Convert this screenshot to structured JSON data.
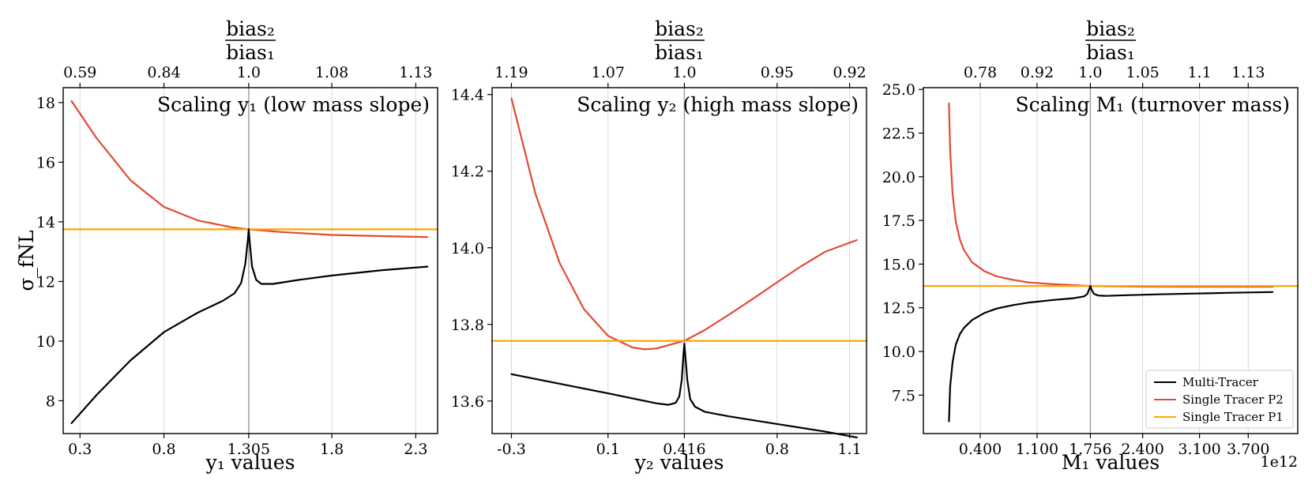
{
  "colors": {
    "multi": "#000000",
    "single_p2": "#e34a33",
    "single_p1": "#ffa500",
    "grid": "#d9d9d9",
    "ref_line": "#a0a0a0"
  },
  "chart_data": [
    {
      "type": "line",
      "title": "Scaling y₁ (low mass slope)",
      "xlabel": "y₁ values",
      "ylabel": "σ_fNL",
      "xlim": [
        0.2,
        2.43
      ],
      "ylim": [
        6.9,
        18.5
      ],
      "xticks": [
        0.3,
        0.8,
        1.305,
        1.8,
        2.3
      ],
      "xtick_labels": [
        "0.3",
        "0.8",
        "1.305",
        "1.8",
        "2.3"
      ],
      "yticks": [
        8,
        10,
        12,
        14,
        16,
        18
      ],
      "ytick_labels": [
        "8",
        "10",
        "12",
        "14",
        "16",
        "18"
      ],
      "top_axis_label_num": "bias₂",
      "top_axis_label_den": "bias₁",
      "top_ticks": [
        0.3,
        0.8,
        1.305,
        1.8,
        2.3
      ],
      "top_tick_labels": [
        "0.59",
        "0.84",
        "1.0",
        "1.08",
        "1.13"
      ],
      "ref_x": 1.305,
      "series": [
        {
          "name": "Single Tracer P2",
          "x": [
            0.25,
            0.4,
            0.6,
            0.8,
            1.0,
            1.2,
            1.305,
            1.5,
            1.8,
            2.1,
            2.37
          ],
          "y": [
            18.05,
            16.8,
            15.4,
            14.5,
            14.05,
            13.82,
            13.75,
            13.66,
            13.56,
            13.52,
            13.49
          ]
        },
        {
          "name": "Multi-Tracer",
          "x": [
            0.25,
            0.4,
            0.6,
            0.8,
            1.0,
            1.15,
            1.22,
            1.26,
            1.285,
            1.3,
            1.305,
            1.31,
            1.325,
            1.35,
            1.38,
            1.45,
            1.6,
            1.8,
            2.1,
            2.37
          ],
          "y": [
            7.25,
            8.2,
            9.35,
            10.3,
            10.95,
            11.35,
            11.6,
            11.95,
            12.6,
            13.4,
            13.75,
            13.4,
            12.5,
            12.05,
            11.92,
            11.92,
            12.05,
            12.2,
            12.38,
            12.5
          ]
        },
        {
          "name": "Single Tracer P1",
          "x": [
            0.2,
            2.43
          ],
          "y": [
            13.75,
            13.75
          ]
        }
      ]
    },
    {
      "type": "line",
      "title": "Scaling y₂ (high mass slope)",
      "xlabel": "y₂ values",
      "ylabel": "",
      "xlim": [
        -0.38,
        1.17
      ],
      "ylim": [
        13.515,
        14.418
      ],
      "xticks": [
        -0.3,
        0.1,
        0.416,
        0.8,
        1.1
      ],
      "xtick_labels": [
        "-0.3",
        "0.1",
        "0.416",
        "0.8",
        "1.1"
      ],
      "yticks": [
        13.6,
        13.8,
        14.0,
        14.2,
        14.4
      ],
      "ytick_labels": [
        "13.6",
        "13.8",
        "14.0",
        "14.2",
        "14.4"
      ],
      "top_axis_label_num": "bias₂",
      "top_axis_label_den": "bias₁",
      "top_ticks": [
        -0.3,
        0.1,
        0.416,
        0.8,
        1.1
      ],
      "top_tick_labels": [
        "1.19",
        "1.07",
        "1.0",
        "0.95",
        "0.92"
      ],
      "ref_x": 0.416,
      "series": [
        {
          "name": "Single Tracer P2",
          "x": [
            -0.3,
            -0.2,
            -0.1,
            0.0,
            0.1,
            0.2,
            0.25,
            0.3,
            0.416,
            0.5,
            0.6,
            0.7,
            0.8,
            0.9,
            1.0,
            1.13
          ],
          "y": [
            14.39,
            14.14,
            13.96,
            13.84,
            13.77,
            13.74,
            13.735,
            13.737,
            13.757,
            13.785,
            13.825,
            13.867,
            13.91,
            13.952,
            13.99,
            14.02
          ]
        },
        {
          "name": "Multi-Tracer",
          "x": [
            -0.3,
            -0.1,
            0.1,
            0.3,
            0.35,
            0.38,
            0.395,
            0.405,
            0.412,
            0.416,
            0.42,
            0.428,
            0.44,
            0.46,
            0.5,
            0.6,
            0.8,
            1.0,
            1.13
          ],
          "y": [
            13.67,
            13.645,
            13.62,
            13.594,
            13.59,
            13.595,
            13.612,
            13.655,
            13.72,
            13.75,
            13.72,
            13.655,
            13.605,
            13.585,
            13.572,
            13.56,
            13.54,
            13.52,
            13.505
          ]
        },
        {
          "name": "Single Tracer P1",
          "x": [
            -0.38,
            1.17
          ],
          "y": [
            13.757,
            13.757
          ]
        }
      ]
    },
    {
      "type": "line",
      "title": "Scaling M₁ (turnover mass)",
      "xlabel": "M₁ values",
      "ylabel": "",
      "x_offset_text": "1e12",
      "xlim": [
        -0.3,
        4.31
      ],
      "ylim": [
        5.3,
        25.1
      ],
      "xticks": [
        0.4,
        1.1,
        1.756,
        2.4,
        3.1,
        3.7
      ],
      "xtick_labels": [
        "0.400",
        "1.100",
        "1.756",
        "2.400",
        "3.100",
        "3.700"
      ],
      "yticks": [
        7.5,
        10.0,
        12.5,
        15.0,
        17.5,
        20.0,
        22.5,
        25.0
      ],
      "ytick_labels": [
        "7.5",
        "10.0",
        "12.5",
        "15.0",
        "17.5",
        "20.0",
        "22.5",
        "25.0"
      ],
      "top_axis_label_num": "bias₂",
      "top_axis_label_den": "bias₁",
      "top_ticks": [
        0.4,
        1.1,
        1.756,
        2.4,
        3.1,
        3.7
      ],
      "top_tick_labels": [
        "0.78",
        "0.92",
        "1.0",
        "1.05",
        "1.1",
        "1.13"
      ],
      "ref_x": 1.756,
      "series": [
        {
          "name": "Single Tracer P2",
          "x": [
            0.015,
            0.03,
            0.06,
            0.1,
            0.15,
            0.2,
            0.3,
            0.45,
            0.6,
            0.8,
            1.0,
            1.3,
            1.6,
            1.756,
            2.0,
            2.5,
            3.0,
            3.5,
            4.0
          ],
          "y": [
            24.2,
            21.5,
            19.0,
            17.4,
            16.4,
            15.8,
            15.1,
            14.6,
            14.3,
            14.1,
            13.95,
            13.85,
            13.78,
            13.75,
            13.73,
            13.71,
            13.7,
            13.7,
            13.7
          ]
        },
        {
          "name": "Multi-Tracer",
          "x": [
            0.015,
            0.03,
            0.06,
            0.1,
            0.15,
            0.2,
            0.3,
            0.45,
            0.6,
            0.8,
            1.0,
            1.3,
            1.55,
            1.68,
            1.72,
            1.74,
            1.756,
            1.77,
            1.8,
            1.85,
            1.95,
            2.2,
            2.6,
            3.0,
            3.5,
            4.0
          ],
          "y": [
            6.0,
            8.0,
            9.4,
            10.4,
            11.0,
            11.35,
            11.8,
            12.2,
            12.45,
            12.65,
            12.8,
            12.95,
            13.05,
            13.15,
            13.3,
            13.55,
            13.75,
            13.55,
            13.3,
            13.2,
            13.18,
            13.22,
            13.27,
            13.31,
            13.36,
            13.4
          ]
        },
        {
          "name": "Single Tracer P1",
          "x": [
            -0.3,
            4.31
          ],
          "y": [
            13.75,
            13.75
          ]
        }
      ]
    }
  ],
  "legend": {
    "placement": "lower-right",
    "entries": [
      "Multi-Tracer",
      "Single Tracer P2",
      "Single Tracer P1"
    ]
  }
}
